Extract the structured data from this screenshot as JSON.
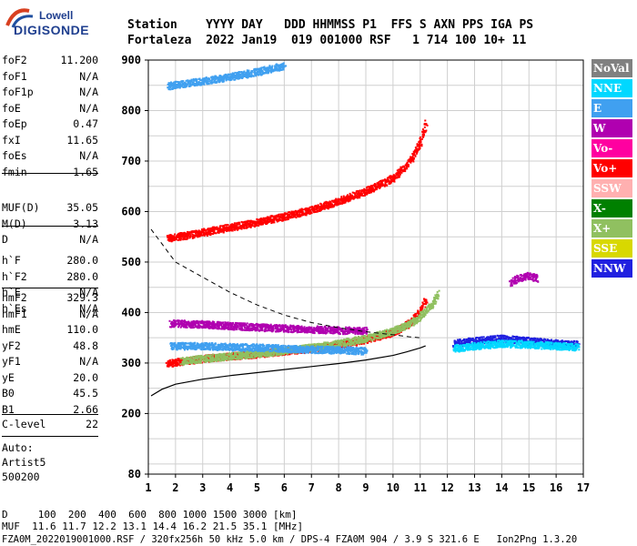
{
  "logo": {
    "line1": "Lowell",
    "line2": "DIGISONDE"
  },
  "header": {
    "labels": "Station    YYYY DAY   DDD HHMMSS P1  FFS S AXN PPS IGA PS",
    "values": "Fortaleza  2022 Jan19  019 001000 RSF   1 714 100 10+ 11"
  },
  "params": {
    "group1": [
      {
        "k": "foF2",
        "v": "11.200"
      },
      {
        "k": "foF1",
        "v": "N/A"
      },
      {
        "k": "foF1p",
        "v": "N/A"
      },
      {
        "k": "foE",
        "v": "N/A"
      },
      {
        "k": "foEp",
        "v": "0.47"
      },
      {
        "k": "fxI",
        "v": "11.65"
      },
      {
        "k": "foEs",
        "v": "N/A"
      },
      {
        "k": "fmin",
        "v": "1.65"
      }
    ],
    "group2": [
      {
        "k": "MUF(D)",
        "v": "35.05"
      },
      {
        "k": "M(D)",
        "v": "3.13"
      },
      {
        "k": "D",
        "v": "N/A"
      }
    ],
    "group3": [
      {
        "k": "h`F",
        "v": "280.0"
      },
      {
        "k": "h`F2",
        "v": "280.0"
      },
      {
        "k": "h`E",
        "v": "N/A"
      },
      {
        "k": "h`Es",
        "v": "N/A"
      }
    ],
    "group4": [
      {
        "k": "hmF2",
        "v": "329.3"
      },
      {
        "k": "hmF1",
        "v": "N/A"
      },
      {
        "k": "hmE",
        "v": "110.0"
      },
      {
        "k": "yF2",
        "v": "48.8"
      },
      {
        "k": "yF1",
        "v": "N/A"
      },
      {
        "k": "yE",
        "v": "20.0"
      },
      {
        "k": "B0",
        "v": "45.5"
      },
      {
        "k": "B1",
        "v": "2.66"
      }
    ],
    "clevel": {
      "k": "C-level",
      "v": "22"
    },
    "auto": [
      "Auto:",
      "Artist5",
      "500200"
    ]
  },
  "legend": [
    {
      "label": "NoVal",
      "bg": "#808080",
      "fg": "#ffffff"
    },
    {
      "label": "NNE",
      "bg": "#00d8ff",
      "fg": "#ffffff"
    },
    {
      "label": "E",
      "bg": "#40a0f0",
      "fg": "#ffffff"
    },
    {
      "label": "W",
      "bg": "#b000b0",
      "fg": "#ffffff"
    },
    {
      "label": "Vo-",
      "bg": "#ff00a0",
      "fg": "#ffffff"
    },
    {
      "label": "Vo+",
      "bg": "#ff0000",
      "fg": "#ffffff"
    },
    {
      "label": "SSW",
      "bg": "#ffb0b0",
      "fg": "#ffffff"
    },
    {
      "label": "X-",
      "bg": "#008000",
      "fg": "#ffffff"
    },
    {
      "label": "X+",
      "bg": "#90c060",
      "fg": "#ffffff"
    },
    {
      "label": "SSE",
      "bg": "#d8d800",
      "fg": "#ffffff"
    },
    {
      "label": "NNW",
      "bg": "#2020e0",
      "fg": "#ffffff"
    }
  ],
  "footer": {
    "line1": "D     100  200  400  600  800 1000 1500 3000 [km]",
    "line2": "MUF  11.6 11.7 12.2 13.1 14.4 16.2 21.5 35.1 [MHz]",
    "line3": "FZA0M_2022019001000.RSF / 320fx256h 50 kHz 5.0 km / DPS-4 FZA0M 904 / 3.9 S 321.6 E   Ion2Png 1.3.20"
  },
  "chart_data": {
    "type": "scatter",
    "xlim": [
      1,
      17
    ],
    "ylim": [
      80,
      900
    ],
    "xticks": [
      "1",
      "2",
      "3",
      "4",
      "5",
      "6",
      "7",
      "8",
      "9",
      "10",
      "11",
      "12",
      "13",
      "14",
      "15",
      "16",
      "17"
    ],
    "yticks": [
      {
        "v": 80,
        "label": "80"
      },
      {
        "v": 200,
        "label": "200"
      },
      {
        "v": 300,
        "label": "300"
      },
      {
        "v": 400,
        "label": "400"
      },
      {
        "v": 500,
        "label": "500"
      },
      {
        "v": 600,
        "label": "600"
      },
      {
        "v": 700,
        "label": "700"
      },
      {
        "v": 800,
        "label": "800"
      },
      {
        "v": 900,
        "label": "900"
      }
    ],
    "grid": true,
    "traces": [
      {
        "name": "F2 O-trace",
        "color": "#ff0000",
        "x": [
          1.65,
          2,
          3,
          4,
          5,
          6,
          7,
          8,
          9,
          10,
          10.6,
          11.0,
          11.2
        ],
        "y": [
          300,
          303,
          310,
          315,
          319,
          325,
          330,
          337,
          348,
          362,
          380,
          405,
          430
        ]
      },
      {
        "name": "F2 X-trace",
        "color": "#90c060",
        "x": [
          2.2,
          3,
          4,
          5,
          6,
          7,
          8,
          9,
          10,
          10.8,
          11.4,
          11.65
        ],
        "y": [
          305,
          310,
          315,
          320,
          326,
          332,
          340,
          350,
          365,
          385,
          415,
          440
        ]
      },
      {
        "name": "multi-hop 2F",
        "color": "#ff0000",
        "x": [
          1.7,
          3,
          4,
          5,
          6,
          7,
          8,
          9,
          10,
          10.6,
          11.0,
          11.2
        ],
        "y": [
          548,
          560,
          570,
          580,
          592,
          605,
          622,
          642,
          668,
          700,
          740,
          780
        ]
      },
      {
        "name": "multi-hop 3F",
        "color": "#40a0f0",
        "x": [
          1.7,
          3,
          4,
          5,
          6
        ],
        "y": [
          850,
          860,
          868,
          878,
          890
        ]
      },
      {
        "name": "spread W",
        "color": "#b000b0",
        "x": [
          1.8,
          3,
          4,
          5,
          6,
          7,
          8,
          9
        ],
        "y": [
          380,
          378,
          375,
          372,
          370,
          368,
          366,
          365
        ]
      },
      {
        "name": "spread E",
        "color": "#40a0f0",
        "x": [
          1.8,
          3,
          4,
          5,
          6,
          7,
          8,
          9
        ],
        "y": [
          335,
          335,
          333,
          332,
          330,
          328,
          327,
          325
        ]
      },
      {
        "name": "oblique NNW",
        "color": "#2020e0",
        "x": [
          12.2,
          13,
          14,
          15,
          16,
          16.8
        ],
        "y": [
          340,
          345,
          350,
          345,
          340,
          338
        ]
      },
      {
        "name": "oblique NNE",
        "color": "#00d8ff",
        "x": [
          12.2,
          13,
          14,
          15,
          16,
          16.8
        ],
        "y": [
          330,
          335,
          340,
          338,
          335,
          333
        ]
      },
      {
        "name": "oblique W",
        "color": "#b000b0",
        "x": [
          14.3,
          14.6,
          15,
          15.3
        ],
        "y": [
          460,
          470,
          475,
          468
        ]
      }
    ],
    "profile": {
      "x": [
        1.1,
        1.5,
        2,
        3,
        4,
        5,
        6,
        7,
        8,
        9,
        10,
        10.5,
        11,
        11.2
      ],
      "y": [
        235,
        248,
        258,
        268,
        275,
        281,
        287,
        293,
        299,
        306,
        315,
        322,
        330,
        334
      ]
    },
    "muf_curve": {
      "x": [
        1.1,
        2,
        3,
        4,
        5,
        6,
        7,
        8,
        9,
        10,
        10.6,
        11.0
      ],
      "y": [
        565,
        500,
        470,
        440,
        415,
        395,
        380,
        370,
        362,
        356,
        352,
        350
      ]
    }
  }
}
